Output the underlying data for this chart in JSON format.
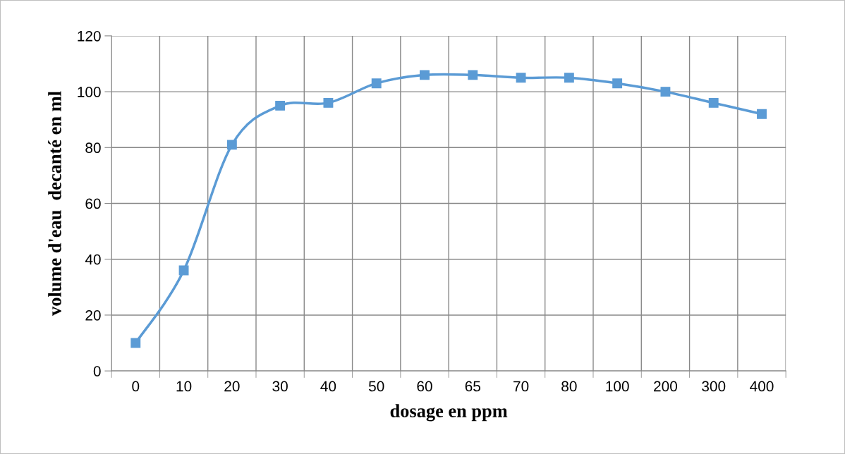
{
  "chart_data": {
    "type": "line",
    "xlabel": "dosage en ppm",
    "ylabel": "volume d'eau  decanté en ml",
    "categories": [
      "0",
      "10",
      "20",
      "30",
      "40",
      "50",
      "60",
      "65",
      "70",
      "80",
      "100",
      "200",
      "300",
      "400"
    ],
    "series": [
      {
        "color": "#5b9bd5",
        "values": [
          10,
          36,
          81,
          95,
          96,
          103,
          106,
          106,
          105,
          105,
          103,
          100,
          96,
          92
        ]
      }
    ],
    "ylim": [
      0,
      120
    ],
    "yticks": [
      0,
      20,
      40,
      60,
      80,
      100,
      120
    ],
    "grid": true,
    "marker": "square",
    "line_style": "solid"
  }
}
